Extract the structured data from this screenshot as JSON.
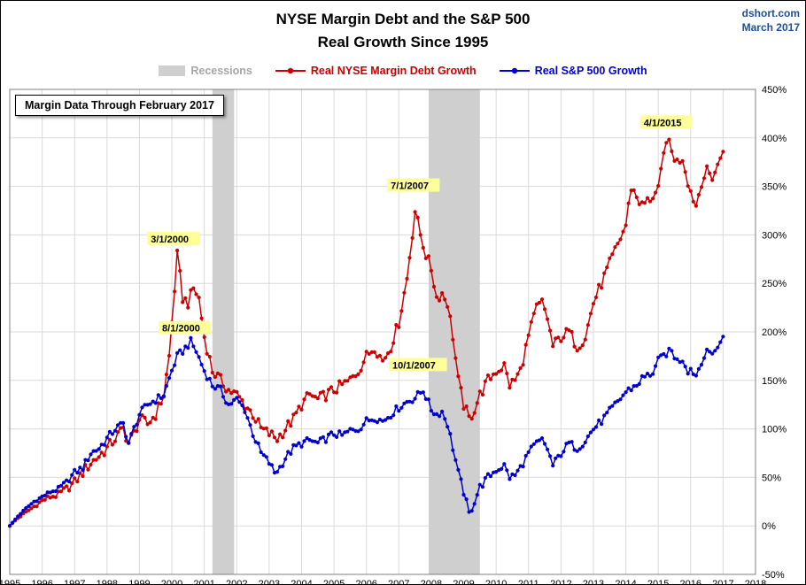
{
  "header": {
    "title_line1": "NYSE Margin Debt and the S&P 500",
    "title_line2": "Real Growth Since 1995",
    "source": "dshort.com",
    "source_date": "March 2017"
  },
  "note_box": "Margin Data Through February 2017",
  "legend": {
    "recessions_label": "Recessions",
    "series1_label": "Real NYSE Margin Debt Growth",
    "series2_label": "Real S&P 500 Growth"
  },
  "colors": {
    "red": "#CC0000",
    "blue": "#0000CC",
    "recession": "#CFCFCF",
    "recession_text": "#A6A6A6",
    "grid": "#DADADA",
    "border": "#7F7F7F",
    "annotation_bg": "#FFFF99",
    "source": "#1F4E9C",
    "axis_text": "#000000"
  },
  "chart_data": {
    "type": "line",
    "title": "NYSE Margin Debt and the S&P 500 — Real Growth Since 1995",
    "x_range": [
      1995,
      2018
    ],
    "y_range": [
      -50,
      450
    ],
    "x_ticks": [
      1995,
      1996,
      1997,
      1998,
      1999,
      2000,
      2001,
      2002,
      2003,
      2004,
      2005,
      2006,
      2007,
      2008,
      2009,
      2010,
      2011,
      2012,
      2013,
      2014,
      2015,
      2016,
      2017,
      2018
    ],
    "y_ticks": [
      450,
      400,
      350,
      300,
      250,
      200,
      150,
      100,
      50,
      0,
      -50
    ],
    "y_tick_suffix": "%",
    "grid": true,
    "legend_position": "top",
    "recessions": [
      [
        2001.25,
        2001.92
      ],
      [
        2007.92,
        2009.5
      ]
    ],
    "annotations": [
      {
        "label": "3/1/2000",
        "x": 1999.35,
        "y": 295
      },
      {
        "label": "8/1/2000",
        "x": 1999.7,
        "y": 203
      },
      {
        "label": "7/1/2007",
        "x": 2006.75,
        "y": 350
      },
      {
        "label": "10/1/2007",
        "x": 2006.8,
        "y": 165
      },
      {
        "label": "4/1/2015",
        "x": 2014.55,
        "y": 415
      }
    ],
    "series": [
      {
        "name": "Real NYSE Margin Debt Growth",
        "color_key": "red",
        "jitter": 6,
        "keypoints": [
          [
            1995.0,
            0
          ],
          [
            1995.25,
            8
          ],
          [
            1995.5,
            14
          ],
          [
            1995.75,
            20
          ],
          [
            1996.0,
            26
          ],
          [
            1996.25,
            30
          ],
          [
            1996.5,
            32
          ],
          [
            1996.75,
            38
          ],
          [
            1997.0,
            45
          ],
          [
            1997.25,
            55
          ],
          [
            1997.5,
            65
          ],
          [
            1997.75,
            72
          ],
          [
            1998.0,
            80
          ],
          [
            1998.25,
            90
          ],
          [
            1998.5,
            100
          ],
          [
            1998.67,
            85
          ],
          [
            1998.83,
            95
          ],
          [
            1999.0,
            110
          ],
          [
            1999.25,
            105
          ],
          [
            1999.5,
            115
          ],
          [
            1999.75,
            135
          ],
          [
            1999.92,
            175
          ],
          [
            2000.0,
            210
          ],
          [
            2000.17,
            280
          ],
          [
            2000.33,
            235
          ],
          [
            2000.5,
            230
          ],
          [
            2000.67,
            245
          ],
          [
            2000.83,
            235
          ],
          [
            2001.0,
            195
          ],
          [
            2001.25,
            160
          ],
          [
            2001.5,
            150
          ],
          [
            2001.75,
            140
          ],
          [
            2002.0,
            135
          ],
          [
            2002.25,
            125
          ],
          [
            2002.5,
            115
          ],
          [
            2002.75,
            100
          ],
          [
            2003.0,
            95
          ],
          [
            2003.25,
            90
          ],
          [
            2003.5,
            100
          ],
          [
            2003.75,
            110
          ],
          [
            2004.0,
            125
          ],
          [
            2004.25,
            135
          ],
          [
            2004.5,
            130
          ],
          [
            2004.75,
            135
          ],
          [
            2005.0,
            140
          ],
          [
            2005.25,
            145
          ],
          [
            2005.5,
            150
          ],
          [
            2005.75,
            160
          ],
          [
            2006.0,
            175
          ],
          [
            2006.25,
            185
          ],
          [
            2006.5,
            170
          ],
          [
            2006.75,
            185
          ],
          [
            2007.0,
            210
          ],
          [
            2007.25,
            255
          ],
          [
            2007.5,
            325
          ],
          [
            2007.67,
            300
          ],
          [
            2007.83,
            280
          ],
          [
            2008.0,
            265
          ],
          [
            2008.17,
            235
          ],
          [
            2008.33,
            240
          ],
          [
            2008.5,
            230
          ],
          [
            2008.67,
            195
          ],
          [
            2008.83,
            150
          ],
          [
            2009.0,
            125
          ],
          [
            2009.17,
            110
          ],
          [
            2009.33,
            120
          ],
          [
            2009.5,
            135
          ],
          [
            2009.75,
            150
          ],
          [
            2010.0,
            160
          ],
          [
            2010.25,
            165
          ],
          [
            2010.42,
            145
          ],
          [
            2010.58,
            150
          ],
          [
            2010.75,
            160
          ],
          [
            2011.0,
            195
          ],
          [
            2011.25,
            225
          ],
          [
            2011.42,
            230
          ],
          [
            2011.58,
            215
          ],
          [
            2011.75,
            185
          ],
          [
            2012.0,
            195
          ],
          [
            2012.25,
            200
          ],
          [
            2012.5,
            185
          ],
          [
            2012.75,
            195
          ],
          [
            2013.0,
            230
          ],
          [
            2013.25,
            250
          ],
          [
            2013.5,
            270
          ],
          [
            2013.75,
            290
          ],
          [
            2014.0,
            310
          ],
          [
            2014.17,
            350
          ],
          [
            2014.33,
            340
          ],
          [
            2014.5,
            330
          ],
          [
            2014.67,
            335
          ],
          [
            2014.83,
            340
          ],
          [
            2015.0,
            345
          ],
          [
            2015.25,
            400
          ],
          [
            2015.42,
            385
          ],
          [
            2015.58,
            375
          ],
          [
            2015.75,
            380
          ],
          [
            2015.92,
            355
          ],
          [
            2016.0,
            345
          ],
          [
            2016.17,
            330
          ],
          [
            2016.33,
            355
          ],
          [
            2016.5,
            365
          ],
          [
            2016.67,
            360
          ],
          [
            2016.83,
            370
          ],
          [
            2017.0,
            390
          ],
          [
            2017.08,
            405
          ]
        ]
      },
      {
        "name": "Real S&P 500 Growth",
        "color_key": "blue",
        "jitter": 4,
        "keypoints": [
          [
            1995.0,
            0
          ],
          [
            1995.25,
            10
          ],
          [
            1995.5,
            18
          ],
          [
            1995.75,
            25
          ],
          [
            1996.0,
            30
          ],
          [
            1996.25,
            35
          ],
          [
            1996.5,
            38
          ],
          [
            1996.75,
            45
          ],
          [
            1997.0,
            55
          ],
          [
            1997.25,
            60
          ],
          [
            1997.5,
            75
          ],
          [
            1997.75,
            80
          ],
          [
            1998.0,
            90
          ],
          [
            1998.25,
            100
          ],
          [
            1998.5,
            105
          ],
          [
            1998.67,
            85
          ],
          [
            1998.83,
            100
          ],
          [
            1999.0,
            115
          ],
          [
            1999.25,
            125
          ],
          [
            1999.5,
            130
          ],
          [
            1999.75,
            135
          ],
          [
            2000.0,
            160
          ],
          [
            2000.17,
            175
          ],
          [
            2000.33,
            180
          ],
          [
            2000.58,
            190
          ],
          [
            2000.75,
            180
          ],
          [
            2001.0,
            160
          ],
          [
            2001.25,
            145
          ],
          [
            2001.5,
            140
          ],
          [
            2001.75,
            125
          ],
          [
            2002.0,
            130
          ],
          [
            2002.25,
            120
          ],
          [
            2002.5,
            95
          ],
          [
            2002.75,
            75
          ],
          [
            2003.0,
            65
          ],
          [
            2003.17,
            55
          ],
          [
            2003.33,
            60
          ],
          [
            2003.5,
            70
          ],
          [
            2003.75,
            80
          ],
          [
            2004.0,
            85
          ],
          [
            2004.25,
            88
          ],
          [
            2004.5,
            85
          ],
          [
            2004.75,
            90
          ],
          [
            2005.0,
            95
          ],
          [
            2005.25,
            93
          ],
          [
            2005.5,
            98
          ],
          [
            2005.75,
            100
          ],
          [
            2006.0,
            108
          ],
          [
            2006.25,
            112
          ],
          [
            2006.5,
            108
          ],
          [
            2006.75,
            115
          ],
          [
            2007.0,
            122
          ],
          [
            2007.25,
            128
          ],
          [
            2007.5,
            132
          ],
          [
            2007.75,
            140
          ],
          [
            2008.0,
            120
          ],
          [
            2008.17,
            115
          ],
          [
            2008.33,
            118
          ],
          [
            2008.5,
            105
          ],
          [
            2008.67,
            80
          ],
          [
            2008.83,
            55
          ],
          [
            2009.0,
            35
          ],
          [
            2009.17,
            12
          ],
          [
            2009.33,
            25
          ],
          [
            2009.5,
            40
          ],
          [
            2009.75,
            50
          ],
          [
            2010.0,
            58
          ],
          [
            2010.25,
            62
          ],
          [
            2010.42,
            50
          ],
          [
            2010.58,
            52
          ],
          [
            2010.75,
            60
          ],
          [
            2011.0,
            75
          ],
          [
            2011.25,
            85
          ],
          [
            2011.42,
            88
          ],
          [
            2011.58,
            80
          ],
          [
            2011.75,
            62
          ],
          [
            2012.0,
            75
          ],
          [
            2012.25,
            85
          ],
          [
            2012.5,
            80
          ],
          [
            2012.75,
            88
          ],
          [
            2013.0,
            100
          ],
          [
            2013.25,
            108
          ],
          [
            2013.5,
            118
          ],
          [
            2013.75,
            128
          ],
          [
            2014.0,
            138
          ],
          [
            2014.17,
            142
          ],
          [
            2014.33,
            145
          ],
          [
            2014.5,
            152
          ],
          [
            2014.67,
            155
          ],
          [
            2014.83,
            158
          ],
          [
            2015.0,
            170
          ],
          [
            2015.25,
            178
          ],
          [
            2015.42,
            180
          ],
          [
            2015.58,
            170
          ],
          [
            2015.75,
            172
          ],
          [
            2015.92,
            160
          ],
          [
            2016.0,
            162
          ],
          [
            2016.17,
            155
          ],
          [
            2016.33,
            170
          ],
          [
            2016.5,
            178
          ],
          [
            2016.67,
            180
          ],
          [
            2016.83,
            182
          ],
          [
            2017.0,
            198
          ],
          [
            2017.08,
            208
          ]
        ]
      }
    ]
  }
}
